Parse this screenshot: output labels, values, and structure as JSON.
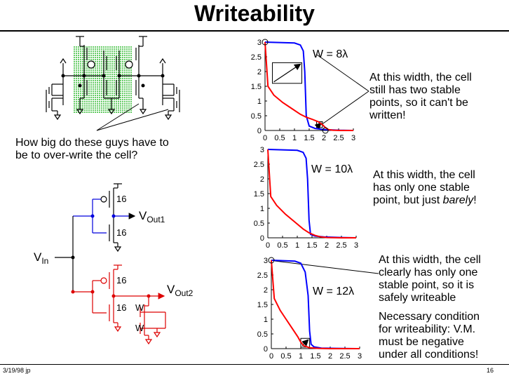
{
  "title": "Writeability",
  "question": [
    "How big do these guys have to",
    "be to over-write the cell?"
  ],
  "circuit": {
    "vin_label": "V",
    "vin_sub": "In",
    "vout1_label": "V",
    "vout1_sub": "Out1",
    "vout2_label": "V",
    "vout2_sub": "Out2",
    "pmos1_width": "16",
    "nmos1_width": "16",
    "pmos2_width": "16",
    "nmos2_width": "16",
    "access_w1": "W",
    "access_w2": "W"
  },
  "notes": {
    "w8": [
      "At this width, the cell",
      "still has two stable",
      "points, so it can't be",
      "written!"
    ],
    "w10_lines": [
      "At this width, the cell",
      "has only one stable"
    ],
    "w10_last_pre": "point, but just ",
    "w10_last_em": "barely",
    "w10_last_post": "!",
    "w12": [
      "At this width, the cell",
      "clearly has only one",
      "stable point, so it is",
      "safely writeable"
    ],
    "condition": [
      "Necessary condition",
      "for writeability:  V.M.",
      "must be negative",
      "under all conditions!"
    ]
  },
  "footer": {
    "date": "3/19/98 jp",
    "page": "16"
  },
  "colors": {
    "blue_curve": "#0000ff",
    "red_curve": "#ff0000",
    "green_cell": "#66cc66",
    "red_circuit": "#dd0000"
  },
  "chart_data": [
    {
      "type": "line",
      "label": "W = 8λ",
      "xlim": [
        0,
        3
      ],
      "ylim": [
        0,
        3
      ],
      "xticks": [
        "0",
        "0.5",
        "1",
        "1.5",
        "2",
        "2.5",
        "3"
      ],
      "yticks": [
        "0",
        "0.5",
        "1",
        "1.5",
        "2",
        "2.5",
        "3"
      ],
      "series": [
        {
          "color": "blue",
          "x": [
            0,
            1.0,
            1.2,
            1.3,
            1.35,
            1.4,
            1.5,
            1.7,
            2.0,
            2.5,
            3.0
          ],
          "y": [
            3.0,
            2.97,
            2.9,
            2.7,
            2.0,
            0.5,
            0.15,
            0.07,
            0.03,
            0.01,
            0.0
          ]
        },
        {
          "color": "red",
          "x": [
            0,
            0.1,
            0.3,
            0.6,
            0.9,
            1.2,
            1.4,
            1.6,
            1.8,
            1.95,
            2.05,
            2.15,
            2.3,
            2.6,
            3.0
          ],
          "y": [
            3.0,
            1.5,
            1.2,
            0.95,
            0.75,
            0.55,
            0.45,
            0.38,
            0.3,
            0.2,
            0.1,
            0.03,
            0.01,
            0.0,
            0.0
          ]
        }
      ],
      "stable_points": [
        [
          0,
          3
        ],
        [
          2.05,
          0
        ]
      ],
      "squares": [
        [
          0.25,
          1.25,
          1.6,
          2.3
        ],
        [
          1.75,
          1.95,
          0.1,
          0.3
        ]
      ]
    },
    {
      "type": "line",
      "label": "W = 10λ",
      "xlim": [
        0,
        3
      ],
      "ylim": [
        0,
        3
      ],
      "xticks": [
        "0",
        "0.5",
        "1",
        "1.5",
        "2",
        "2.5",
        "3"
      ],
      "yticks": [
        "0",
        "0.5",
        "1",
        "1.5",
        "2",
        "2.5",
        "3"
      ],
      "series": [
        {
          "color": "blue",
          "x": [
            0,
            1.0,
            1.2,
            1.3,
            1.35,
            1.4,
            1.45,
            1.6,
            1.9,
            2.5,
            3.0
          ],
          "y": [
            3.0,
            2.97,
            2.9,
            2.7,
            2.0,
            0.6,
            0.12,
            0.06,
            0.03,
            0.01,
            0.0
          ]
        },
        {
          "color": "red",
          "x": [
            0,
            0.1,
            0.3,
            0.6,
            0.9,
            1.2,
            1.4,
            1.6,
            1.8,
            2.0,
            2.5,
            3.0
          ],
          "y": [
            3.0,
            1.4,
            1.1,
            0.8,
            0.55,
            0.3,
            0.17,
            0.08,
            0.03,
            0.01,
            0.0,
            0.0
          ]
        }
      ]
    },
    {
      "type": "line",
      "label": "W = 12λ",
      "xlim": [
        0,
        3
      ],
      "ylim": [
        0,
        3
      ],
      "xticks": [
        "0",
        "0.5",
        "1",
        "1.5",
        "2",
        "2.5",
        "3"
      ],
      "yticks": [
        "0",
        "0.5",
        "1",
        "1.5",
        "2",
        "2.5",
        "3"
      ],
      "series": [
        {
          "color": "blue",
          "x": [
            0,
            0.8,
            1.0,
            1.15,
            1.25,
            1.3,
            1.35,
            1.45,
            1.7,
            2.2,
            3.0
          ],
          "y": [
            3.0,
            2.97,
            2.9,
            2.6,
            1.8,
            0.6,
            0.15,
            0.06,
            0.02,
            0.01,
            0.0
          ]
        },
        {
          "color": "red",
          "x": [
            0,
            0.1,
            0.3,
            0.5,
            0.7,
            0.9,
            1.0,
            1.1,
            1.3,
            1.6,
            2.0,
            3.0
          ],
          "y": [
            3.0,
            1.7,
            1.3,
            1.0,
            0.7,
            0.4,
            0.22,
            0.1,
            0.03,
            0.01,
            0.0,
            0.0
          ]
        }
      ],
      "stable_points": [
        [
          0,
          3
        ]
      ],
      "squares": [
        [
          1.0,
          1.3,
          0.05,
          0.35
        ]
      ]
    }
  ]
}
